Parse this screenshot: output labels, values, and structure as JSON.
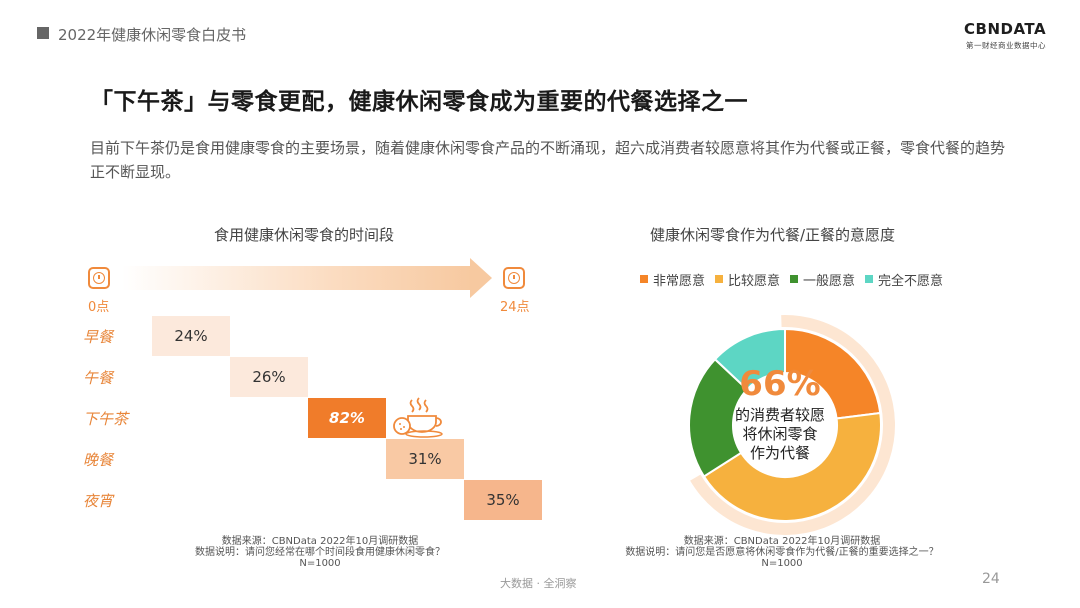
{
  "header": {
    "report_title": "2022年健康休闲零食白皮书",
    "logo": "CBNDATA",
    "logo_sub": "第一财经商业数据中心"
  },
  "title": "「下午茶」与零食更配，健康休闲零食成为重要的代餐选择之一",
  "description": "目前下午茶仍是食用健康零食的主要场景，随着健康休闲零食产品的不断涌现，超六成消费者较愿意将其作为代餐或正餐，零食代餐的趋势正不断显现。",
  "left": {
    "section_title": "食用健康休闲零食的时间段",
    "time_start": "0点",
    "time_end": "24点",
    "source_line1": "数据来源：CBNData 2022年10月调研数据",
    "source_line2": "数据说明：请问您经常在哪个时间段食用健康休闲零食？",
    "source_line3": "N=1000"
  },
  "right": {
    "section_title": "健康休闲零食作为代餐/正餐的意愿度",
    "center_value": "66%",
    "center_line1": "的消费者较愿",
    "center_line2": "将休闲零食",
    "center_line3": "作为代餐",
    "source_line1": "数据来源：CBNData 2022年10月调研数据",
    "source_line2": "数据说明：请问您是否愿意将休闲零食作为代餐/正餐的重要选择之一？",
    "source_line3": "N=1000"
  },
  "chart_data": [
    {
      "type": "bar",
      "title": "食用健康休闲零食的时间段",
      "categories": [
        "早餐",
        "午餐",
        "下午茶",
        "晚餐",
        "夜宵"
      ],
      "values": [
        24,
        26,
        82,
        31,
        35
      ],
      "labels": [
        "24%",
        "26%",
        "82%",
        "31%",
        "35%"
      ],
      "highlight": "下午茶",
      "colors": [
        "#fce9dc",
        "#fce9dc",
        "#f07c2a",
        "#f9c9a4",
        "#f6b68c"
      ]
    },
    {
      "type": "pie",
      "title": "健康休闲零食作为代餐/正餐的意愿度",
      "series": [
        {
          "name": "非常愿意",
          "color": "#f58528",
          "value": 23
        },
        {
          "name": "比较愿意",
          "color": "#f6b13e",
          "value": 43
        },
        {
          "name": "一般愿意",
          "color": "#3f922f",
          "value": 21
        },
        {
          "name": "完全不愿意",
          "color": "#5dd6c4",
          "value": 13
        }
      ],
      "legend": "top"
    }
  ],
  "footer": {
    "text": "大数据 · 全洞察",
    "page": "24"
  }
}
